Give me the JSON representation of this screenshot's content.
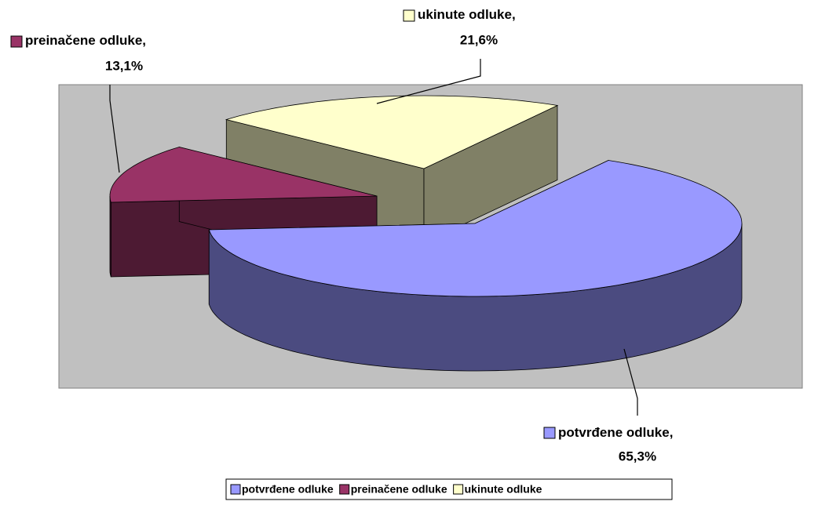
{
  "chart_data": {
    "type": "pie3d",
    "categories": [
      "potvrđene odluke",
      "preinačene odluke",
      "ukinute odluke"
    ],
    "values": [
      65.3,
      13.1,
      21.6
    ],
    "value_labels": [
      "65,3%",
      "13,1%",
      "21,6%"
    ],
    "label_separator": ",",
    "colors": [
      "#9999ff",
      "#993366",
      "#ffffcc"
    ],
    "side_colors": [
      "#4b4b80",
      "#4d1a33",
      "#808066"
    ],
    "legend": "bottom"
  }
}
